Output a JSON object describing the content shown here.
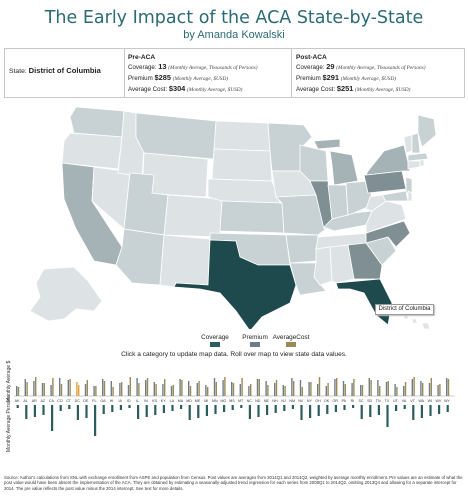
{
  "header": {
    "title": "The Early Impact of the ACA State-by-State",
    "subtitle": "by Amanda Kowalski"
  },
  "info": {
    "state_label": "State:",
    "state_value": "District of Columbia",
    "pre": {
      "heading": "Pre-ACA",
      "coverage_label": "Coverage:",
      "coverage_value": "13",
      "coverage_note": "(Monthly Average, Thousands of Persons)",
      "premium_label": "Premium",
      "premium_value": "$285",
      "premium_note": "(Monthly Average, $USD)",
      "avgcost_label": "Average Cost:",
      "avgcost_value": "$304",
      "avgcost_note": "(Monthly Average, $USD)"
    },
    "post": {
      "heading": "Post-ACA",
      "coverage_label": "Coverage:",
      "coverage_value": "29",
      "coverage_note": "(Monthly Average, Thousands of Persons)",
      "premium_label": "Premium",
      "premium_value": "$291",
      "premium_note": "(Monthly Average, $USD)",
      "avgcost_label": "Average Cost:",
      "avgcost_value": "$251",
      "avgcost_note": "(Monthly Average, $USD)"
    }
  },
  "map": {
    "tooltip": "District of Columbia",
    "colors": {
      "very_light": "#dde3e5",
      "light": "#c8d1d4",
      "mid": "#a5b2b6",
      "midDark": "#7f8f93",
      "dark": "#1f4a4d",
      "border": "#ffffff"
    }
  },
  "legend": {
    "items": [
      {
        "label": "Coverage",
        "color": "#2b5c5f"
      },
      {
        "label": "Premium",
        "color": "#6f7d8a"
      },
      {
        "label": "AverageCost",
        "color": "#9a8a55"
      }
    ],
    "hint": "Click a category to update map data. Roll over map to view state data values."
  },
  "bars": {
    "top_axis_label": "Monthly Average $",
    "bottom_axis_label": "Monthly Average Persons",
    "state_codes": [
      "AK",
      "AL",
      "AR",
      "AZ",
      "CA",
      "CO",
      "CT",
      "DC",
      "DE",
      "FL",
      "GA",
      "HI",
      "IA",
      "ID",
      "IL",
      "IN",
      "KS",
      "KY",
      "LA",
      "MA",
      "MD",
      "ME",
      "MI",
      "MN",
      "MO",
      "MS",
      "MT",
      "NC",
      "ND",
      "NE",
      "NH",
      "NJ",
      "NM",
      "NV",
      "NY",
      "OH",
      "OK",
      "OR",
      "PA",
      "RI",
      "SC",
      "SD",
      "TN",
      "TX",
      "UT",
      "VA",
      "VT",
      "WA",
      "WI",
      "WV",
      "WY"
    ],
    "highlight_index": 7,
    "colors": {
      "premium": "#6f7d8a",
      "avgcost": "#9a8a55",
      "coverage": "#2b5c5f",
      "highlight": "#e0a23a"
    }
  },
  "source": "Source: Author's calculations from SNL with exchange enrollment from ASPE and population from Census. Post values are averages from 2014Q1 and 2014Q2, weighted by average monthly enrollment. Pre values are an estimate of what the post value would have been absent the implementation of the ACA. They are obtained by estimating a seasonally-adjusted trend regression for each series from 2008Q1 to 2014Q2, omitting 2013Q4 and allowing for a separate intercept for 2014. The pre value reflects the post value minus the 2014 intercept. See text for more details."
}
